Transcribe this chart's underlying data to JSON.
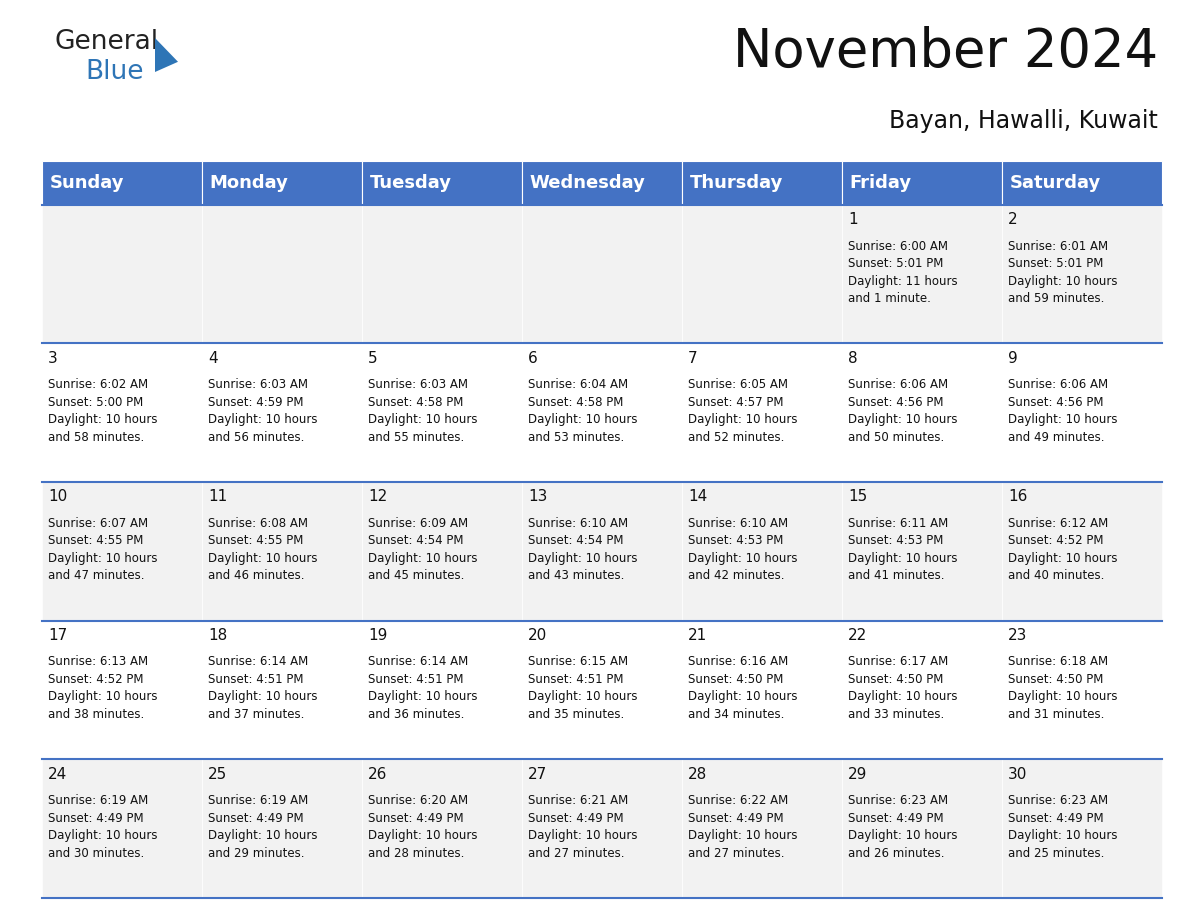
{
  "title": "November 2024",
  "subtitle": "Bayan, Hawalli, Kuwait",
  "header_color": "#4472C4",
  "header_text_color": "#FFFFFF",
  "border_color": "#4472C4",
  "days_of_week": [
    "Sunday",
    "Monday",
    "Tuesday",
    "Wednesday",
    "Thursday",
    "Friday",
    "Saturday"
  ],
  "weeks": [
    {
      "days": [
        {
          "day": "",
          "info": ""
        },
        {
          "day": "",
          "info": ""
        },
        {
          "day": "",
          "info": ""
        },
        {
          "day": "",
          "info": ""
        },
        {
          "day": "",
          "info": ""
        },
        {
          "day": "1",
          "info": "Sunrise: 6:00 AM\nSunset: 5:01 PM\nDaylight: 11 hours\nand 1 minute."
        },
        {
          "day": "2",
          "info": "Sunrise: 6:01 AM\nSunset: 5:01 PM\nDaylight: 10 hours\nand 59 minutes."
        }
      ],
      "bg": "#F2F2F2"
    },
    {
      "days": [
        {
          "day": "3",
          "info": "Sunrise: 6:02 AM\nSunset: 5:00 PM\nDaylight: 10 hours\nand 58 minutes."
        },
        {
          "day": "4",
          "info": "Sunrise: 6:03 AM\nSunset: 4:59 PM\nDaylight: 10 hours\nand 56 minutes."
        },
        {
          "day": "5",
          "info": "Sunrise: 6:03 AM\nSunset: 4:58 PM\nDaylight: 10 hours\nand 55 minutes."
        },
        {
          "day": "6",
          "info": "Sunrise: 6:04 AM\nSunset: 4:58 PM\nDaylight: 10 hours\nand 53 minutes."
        },
        {
          "day": "7",
          "info": "Sunrise: 6:05 AM\nSunset: 4:57 PM\nDaylight: 10 hours\nand 52 minutes."
        },
        {
          "day": "8",
          "info": "Sunrise: 6:06 AM\nSunset: 4:56 PM\nDaylight: 10 hours\nand 50 minutes."
        },
        {
          "day": "9",
          "info": "Sunrise: 6:06 AM\nSunset: 4:56 PM\nDaylight: 10 hours\nand 49 minutes."
        }
      ],
      "bg": "#FFFFFF"
    },
    {
      "days": [
        {
          "day": "10",
          "info": "Sunrise: 6:07 AM\nSunset: 4:55 PM\nDaylight: 10 hours\nand 47 minutes."
        },
        {
          "day": "11",
          "info": "Sunrise: 6:08 AM\nSunset: 4:55 PM\nDaylight: 10 hours\nand 46 minutes."
        },
        {
          "day": "12",
          "info": "Sunrise: 6:09 AM\nSunset: 4:54 PM\nDaylight: 10 hours\nand 45 minutes."
        },
        {
          "day": "13",
          "info": "Sunrise: 6:10 AM\nSunset: 4:54 PM\nDaylight: 10 hours\nand 43 minutes."
        },
        {
          "day": "14",
          "info": "Sunrise: 6:10 AM\nSunset: 4:53 PM\nDaylight: 10 hours\nand 42 minutes."
        },
        {
          "day": "15",
          "info": "Sunrise: 6:11 AM\nSunset: 4:53 PM\nDaylight: 10 hours\nand 41 minutes."
        },
        {
          "day": "16",
          "info": "Sunrise: 6:12 AM\nSunset: 4:52 PM\nDaylight: 10 hours\nand 40 minutes."
        }
      ],
      "bg": "#F2F2F2"
    },
    {
      "days": [
        {
          "day": "17",
          "info": "Sunrise: 6:13 AM\nSunset: 4:52 PM\nDaylight: 10 hours\nand 38 minutes."
        },
        {
          "day": "18",
          "info": "Sunrise: 6:14 AM\nSunset: 4:51 PM\nDaylight: 10 hours\nand 37 minutes."
        },
        {
          "day": "19",
          "info": "Sunrise: 6:14 AM\nSunset: 4:51 PM\nDaylight: 10 hours\nand 36 minutes."
        },
        {
          "day": "20",
          "info": "Sunrise: 6:15 AM\nSunset: 4:51 PM\nDaylight: 10 hours\nand 35 minutes."
        },
        {
          "day": "21",
          "info": "Sunrise: 6:16 AM\nSunset: 4:50 PM\nDaylight: 10 hours\nand 34 minutes."
        },
        {
          "day": "22",
          "info": "Sunrise: 6:17 AM\nSunset: 4:50 PM\nDaylight: 10 hours\nand 33 minutes."
        },
        {
          "day": "23",
          "info": "Sunrise: 6:18 AM\nSunset: 4:50 PM\nDaylight: 10 hours\nand 31 minutes."
        }
      ],
      "bg": "#FFFFFF"
    },
    {
      "days": [
        {
          "day": "24",
          "info": "Sunrise: 6:19 AM\nSunset: 4:49 PM\nDaylight: 10 hours\nand 30 minutes."
        },
        {
          "day": "25",
          "info": "Sunrise: 6:19 AM\nSunset: 4:49 PM\nDaylight: 10 hours\nand 29 minutes."
        },
        {
          "day": "26",
          "info": "Sunrise: 6:20 AM\nSunset: 4:49 PM\nDaylight: 10 hours\nand 28 minutes."
        },
        {
          "day": "27",
          "info": "Sunrise: 6:21 AM\nSunset: 4:49 PM\nDaylight: 10 hours\nand 27 minutes."
        },
        {
          "day": "28",
          "info": "Sunrise: 6:22 AM\nSunset: 4:49 PM\nDaylight: 10 hours\nand 27 minutes."
        },
        {
          "day": "29",
          "info": "Sunrise: 6:23 AM\nSunset: 4:49 PM\nDaylight: 10 hours\nand 26 minutes."
        },
        {
          "day": "30",
          "info": "Sunrise: 6:23 AM\nSunset: 4:49 PM\nDaylight: 10 hours\nand 25 minutes."
        }
      ],
      "bg": "#F2F2F2"
    }
  ],
  "logo_general_color": "#222222",
  "logo_blue_color": "#2E75B6",
  "logo_triangle_color": "#2E75B6",
  "title_fontsize": 38,
  "subtitle_fontsize": 17,
  "header_fontsize": 13,
  "day_number_fontsize": 11,
  "cell_text_fontsize": 8.5
}
